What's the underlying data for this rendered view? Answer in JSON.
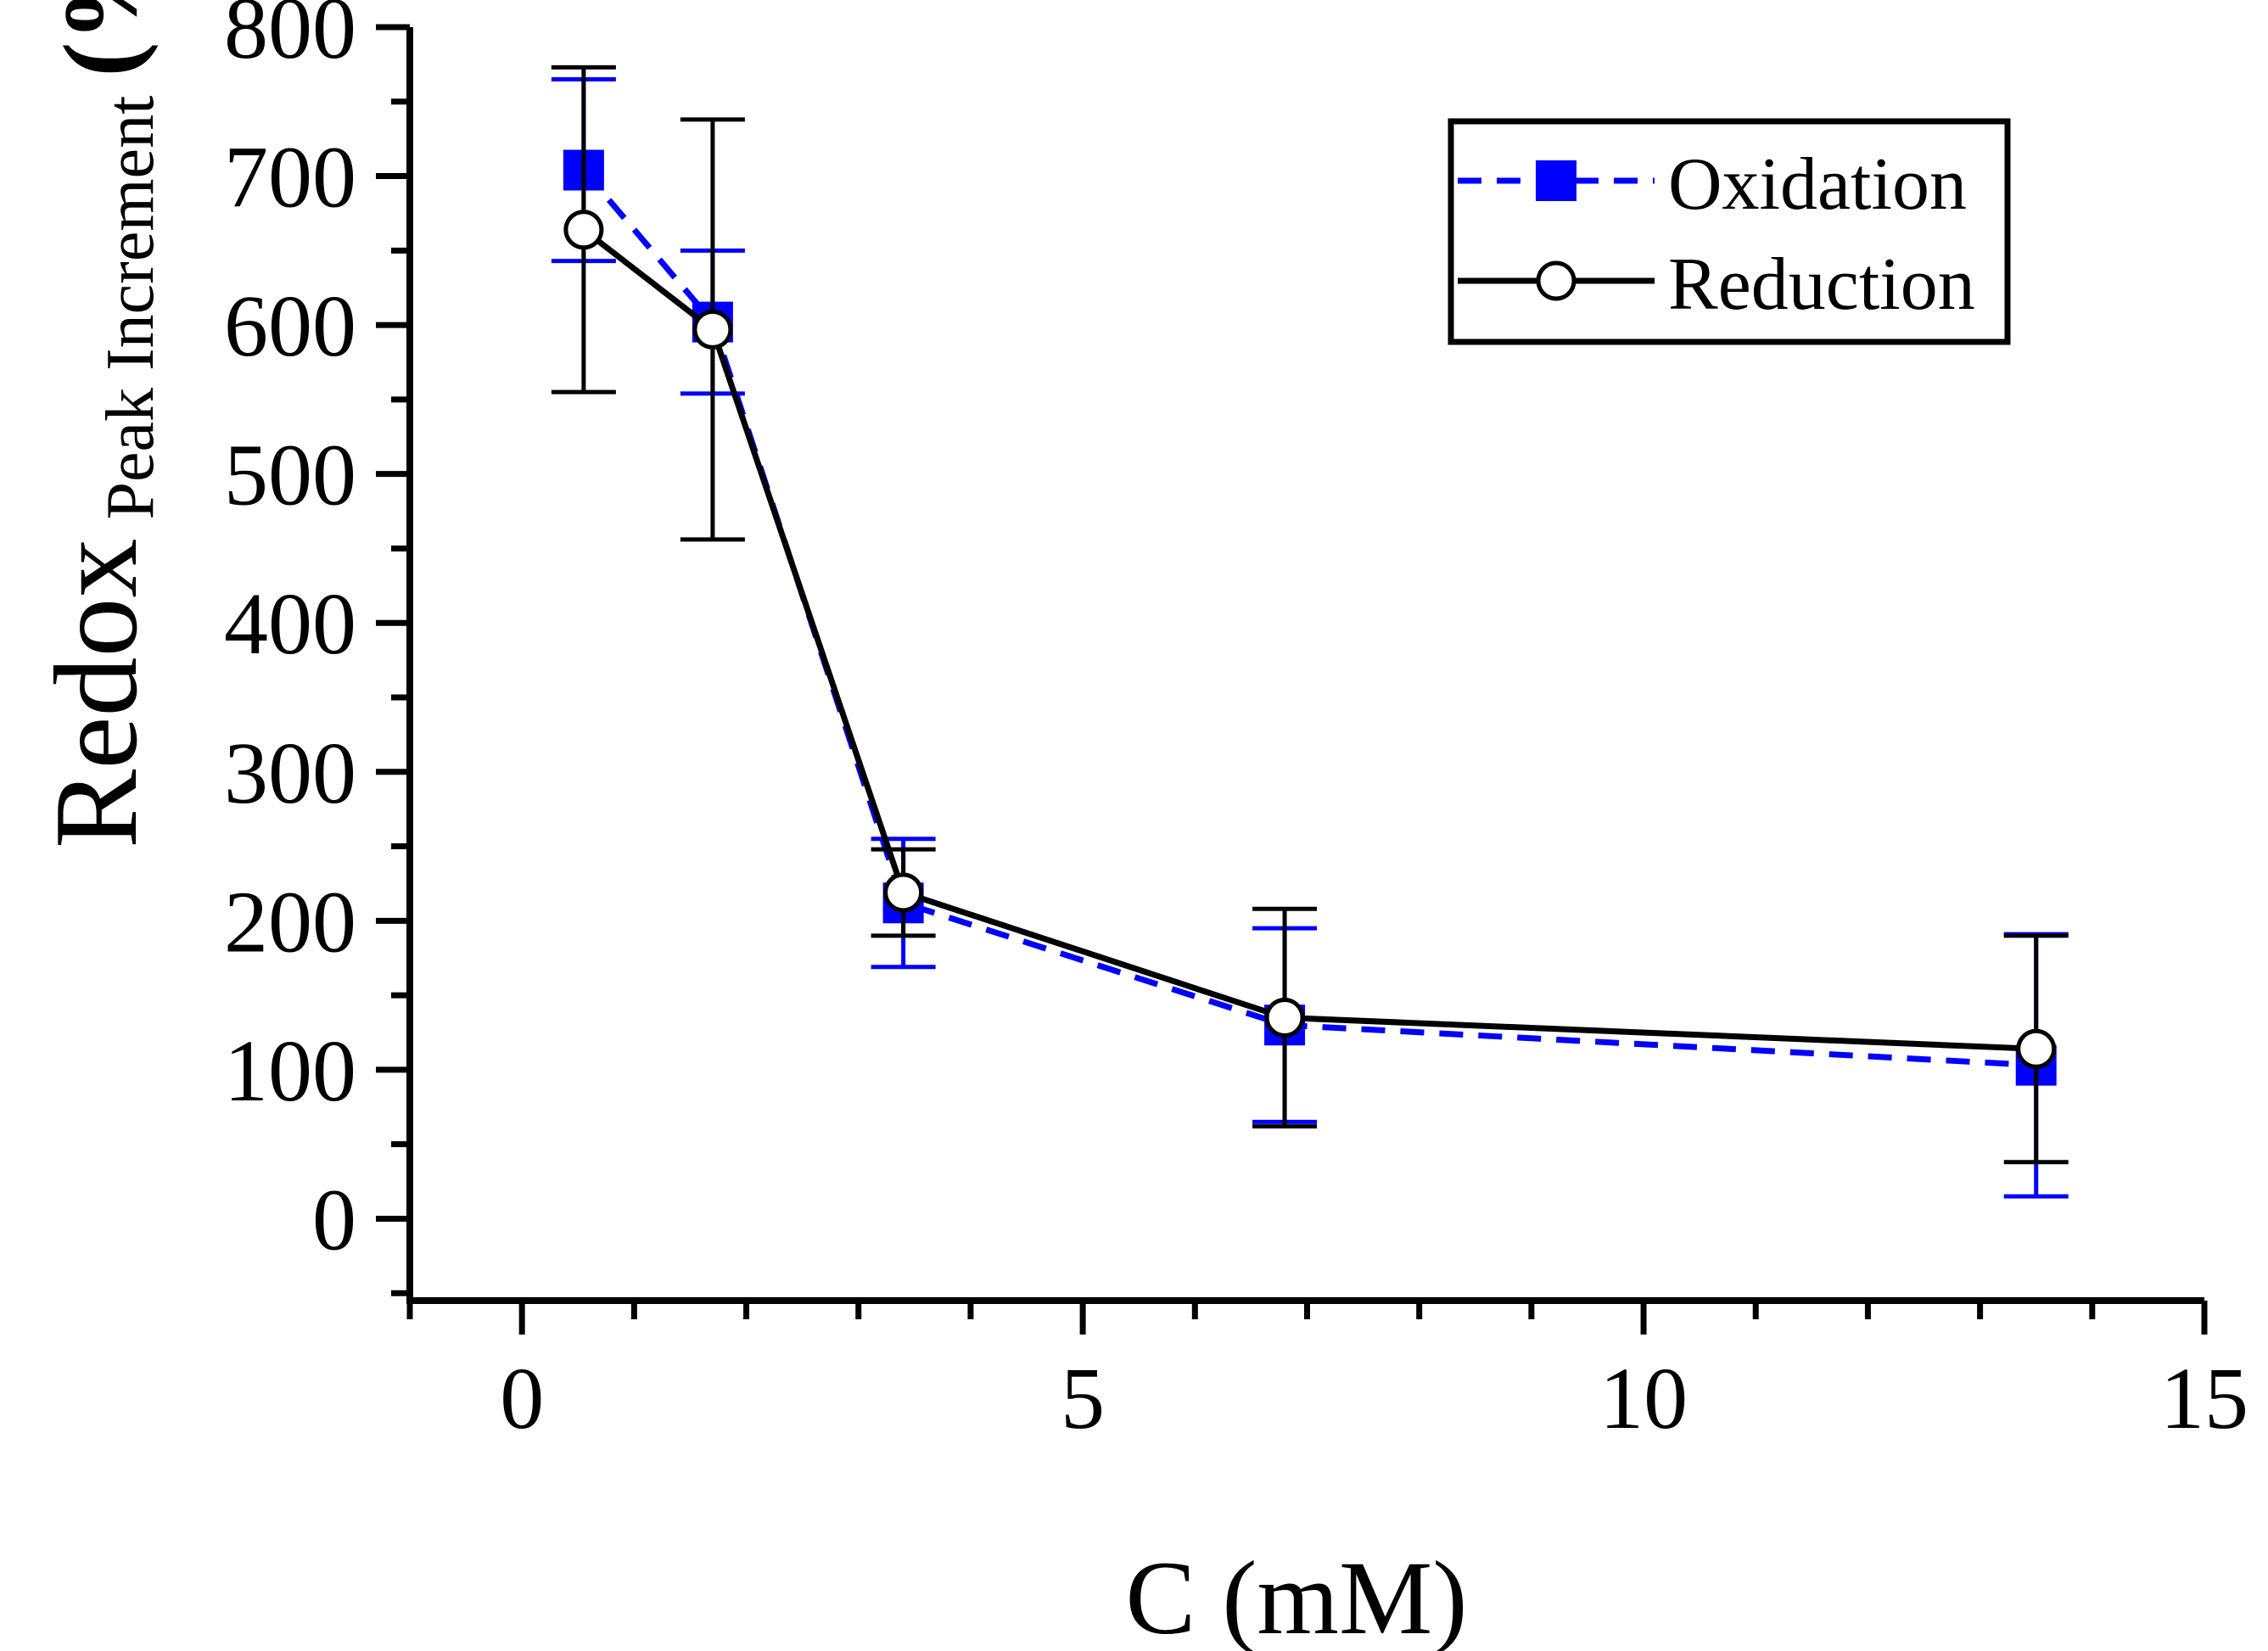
{
  "chart_data": {
    "type": "line",
    "title": "",
    "xlabel": "C (mM)",
    "ylabel": {
      "main": "Redox",
      "subscript": "Peak Increment",
      "unit": "(%)"
    },
    "xlim": [
      -1,
      15
    ],
    "ylim": [
      -55,
      800
    ],
    "xticks": [
      0,
      5,
      10,
      15
    ],
    "xticks_minor_step": 1,
    "yticks": [
      0,
      100,
      200,
      300,
      400,
      500,
      600,
      700,
      800
    ],
    "yticks_minor_step": 50,
    "grid": false,
    "legend": {
      "position": "top-right"
    },
    "x": [
      0.55,
      1.7,
      3.4,
      6.8,
      13.5
    ],
    "series": [
      {
        "name": "Oxidation",
        "color": "#0000ff",
        "line_style": "dashed",
        "marker": "filled-square",
        "values": [
          704,
          602,
          212,
          130,
          103
        ],
        "error": [
          61,
          48,
          43,
          65,
          88
        ]
      },
      {
        "name": "Reduction",
        "color": "#000000",
        "line_style": "solid",
        "marker": "open-circle",
        "values": [
          664,
          597,
          219,
          135,
          114
        ],
        "error": [
          109,
          141,
          29,
          73,
          76
        ]
      }
    ]
  }
}
